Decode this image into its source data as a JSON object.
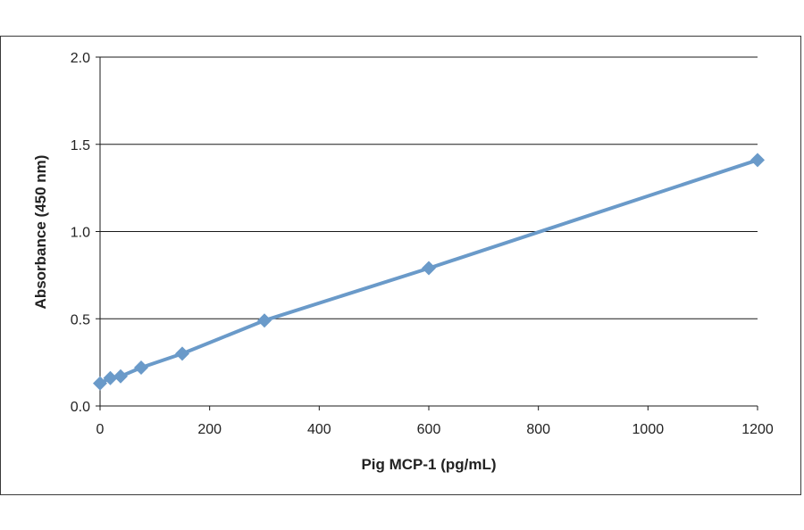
{
  "chart_data": {
    "type": "line",
    "xlabel": "Pig MCP-1 (pg/mL)",
    "ylabel": "Absorbance (450 nm)",
    "xlim": [
      0,
      1200
    ],
    "ylim": [
      0,
      2.0
    ],
    "x_ticks": [
      0,
      200,
      400,
      600,
      800,
      1000,
      1200
    ],
    "y_ticks": [
      0.0,
      0.5,
      1.0,
      1.5,
      2.0
    ],
    "x_tick_labels": [
      "0",
      "200",
      "400",
      "600",
      "800",
      "1000",
      "1200"
    ],
    "y_tick_labels": [
      "0.0",
      "0.5",
      "1.0",
      "1.5",
      "2.0"
    ],
    "grid": "horizontal",
    "legend": "none",
    "series": [
      {
        "x": [
          0,
          18.75,
          37.5,
          75,
          150,
          300,
          600,
          1200
        ],
        "y": [
          0.13,
          0.16,
          0.17,
          0.22,
          0.3,
          0.49,
          0.79,
          1.41
        ],
        "color": "#6a9ac9",
        "marker": "diamond"
      }
    ]
  }
}
